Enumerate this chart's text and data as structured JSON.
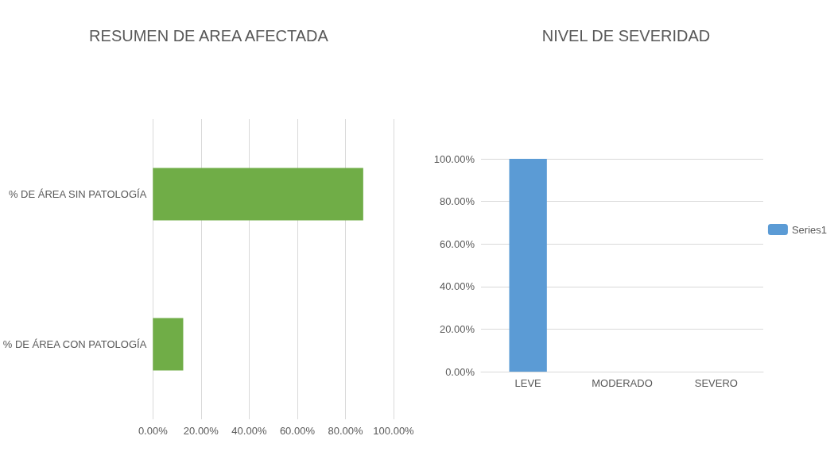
{
  "chart_data": [
    {
      "type": "bar",
      "title": "RESUMEN DE AREA AFECTADA",
      "orientation": "horizontal",
      "categories": [
        "% DE ÁREA SIN PATOLOGÍA",
        "% DE ÁREA CON PATOLOGÍA"
      ],
      "values": [
        87.4,
        12.6
      ],
      "color": "#70ad47",
      "xlim": [
        0,
        100
      ],
      "xticks": [
        {
          "value": 0,
          "label": "0.00%"
        },
        {
          "value": 20,
          "label": "20.00%"
        },
        {
          "value": 40,
          "label": "40.00%"
        },
        {
          "value": 60,
          "label": "60.00%"
        },
        {
          "value": 80,
          "label": "80.00%"
        },
        {
          "value": 100,
          "label": "100.00%"
        }
      ],
      "grid": "x",
      "legend": false
    },
    {
      "type": "bar",
      "title": "NIVEL DE SEVERIDAD",
      "categories": [
        "LEVE",
        "MODERADO",
        "SEVERO"
      ],
      "series": [
        {
          "name": "Series1",
          "color": "#5b9bd5",
          "values": [
            100,
            0,
            0
          ]
        }
      ],
      "ylim": [
        0,
        100
      ],
      "yticks": [
        {
          "value": 0,
          "label": "0.00%"
        },
        {
          "value": 20,
          "label": "20.00%"
        },
        {
          "value": 40,
          "label": "40.00%"
        },
        {
          "value": 60,
          "label": "60.00%"
        },
        {
          "value": 80,
          "label": "80.00%"
        },
        {
          "value": 100,
          "label": "100.00%"
        }
      ],
      "grid": "y",
      "legend": "right"
    }
  ]
}
